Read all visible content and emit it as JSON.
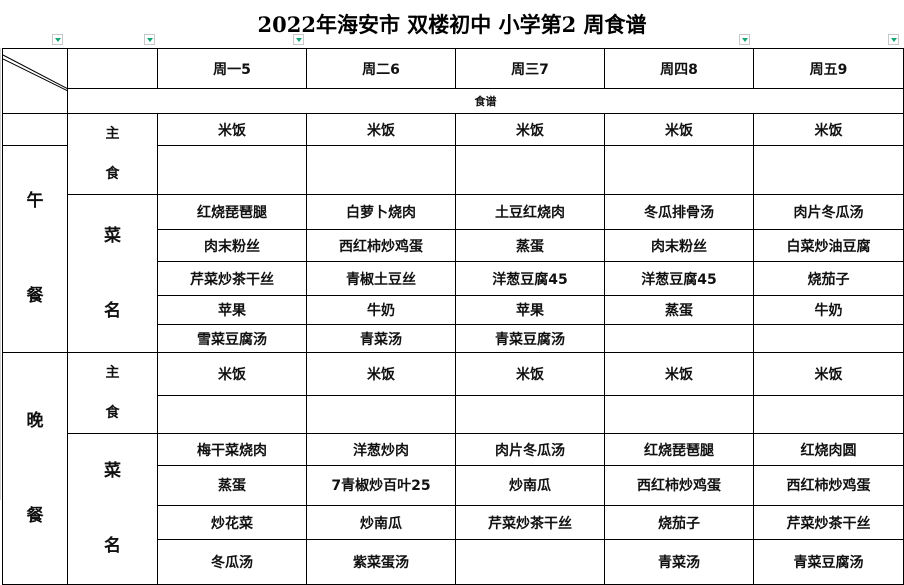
{
  "title": "2022年海安市  双楼初中  小学第2  周食谱",
  "header": {
    "days": [
      "周一5",
      "周二6",
      "周三7",
      "周四8",
      "周五9"
    ],
    "recipe_label": "食谱"
  },
  "labels": {
    "lunch": [
      "午",
      "餐"
    ],
    "dinner": [
      "晚",
      "餐"
    ],
    "staple": [
      "主",
      "食"
    ],
    "dishes": [
      "菜",
      "名"
    ]
  },
  "lunch": {
    "staple": [
      "米饭",
      "米饭",
      "米饭",
      "米饭",
      "米饭"
    ],
    "dishes": [
      [
        "红烧琵琶腿",
        "白萝卜烧肉",
        "土豆红烧肉",
        "冬瓜排骨汤",
        "肉片冬瓜汤"
      ],
      [
        "肉末粉丝",
        "西红柿炒鸡蛋",
        "蒸蛋",
        "肉末粉丝",
        "白菜炒油豆腐"
      ],
      [
        "芹菜炒茶干丝",
        "青椒土豆丝",
        "洋葱豆腐45",
        "洋葱豆腐45",
        "烧茄子"
      ],
      [
        "苹果",
        "牛奶",
        "苹果",
        "蒸蛋",
        "牛奶"
      ],
      [
        "雪菜豆腐汤",
        "青菜汤",
        "青菜豆腐汤",
        "",
        ""
      ]
    ]
  },
  "dinner": {
    "staple": [
      "米饭",
      "米饭",
      "米饭",
      "米饭",
      "米饭"
    ],
    "dishes": [
      [
        "梅干菜烧肉",
        "洋葱炒肉",
        "肉片冬瓜汤",
        "红烧琵琶腿",
        "红烧肉圆"
      ],
      [
        "蒸蛋",
        "7青椒炒百叶25",
        "炒南瓜",
        "西红柿炒鸡蛋",
        "西红柿炒鸡蛋"
      ],
      [
        "炒花菜",
        "炒南瓜",
        "芹菜炒茶干丝",
        "烧茄子",
        "芹菜炒茶干丝"
      ],
      [
        "冬瓜汤",
        "紫菜蛋汤",
        "",
        "青菜汤",
        "青菜豆腐汤"
      ]
    ]
  },
  "colors": {
    "filter_arrow": "#1aa37a",
    "grid": "#000000"
  }
}
